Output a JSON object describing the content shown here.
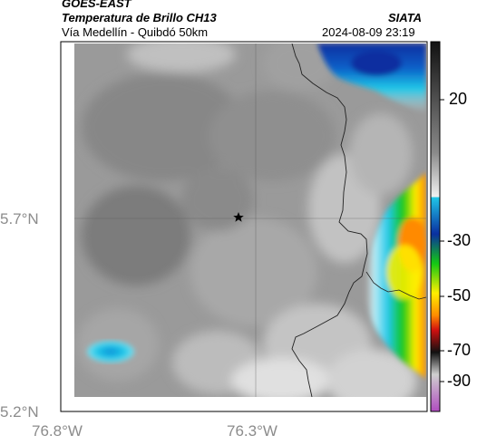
{
  "header": {
    "satellite": "GOES-EAST",
    "product": "Temperatura de Brillo CH13",
    "region": "Vía Medellín - Quibdó 50km",
    "org": "SIATA",
    "timestamp": "2024-08-09 23:19"
  },
  "axes": {
    "lat_labels": [
      "5.7°N",
      "5.2°N"
    ],
    "lon_labels": [
      "76.8°W",
      "76.3°W"
    ]
  },
  "colorbar": {
    "tick_labels": [
      "20",
      "-30",
      "-50",
      "-70",
      "-90"
    ],
    "colors": {
      "warm_gray_dark": "#5a5a5a",
      "warm_gray_light": "#e6e6e6",
      "cyan": "#20c8e8",
      "blue": "#0a2fa0",
      "green": "#14c814",
      "yellow": "#ffee00",
      "orange": "#ff8c00",
      "red": "#d01010",
      "black": "#111111",
      "gray_light": "#cfcfcf",
      "magenta": "#b04cc0"
    }
  },
  "marker": {
    "icon": "star-icon"
  }
}
